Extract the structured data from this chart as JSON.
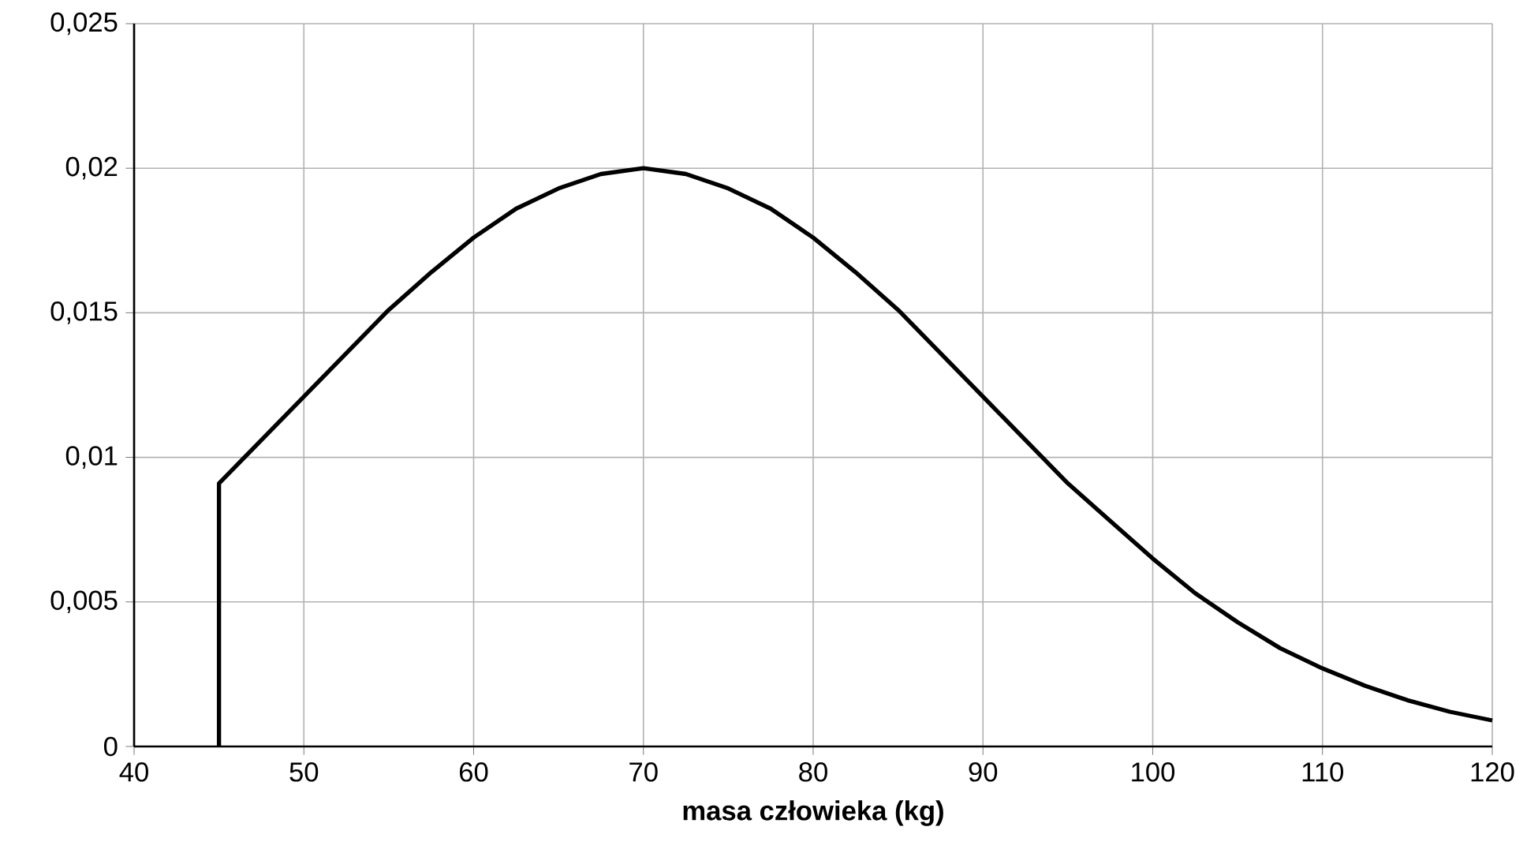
{
  "chart_data": {
    "type": "line",
    "xlabel": "**masa człowieka (kg)**",
    "x": [
      45,
      45,
      47.5,
      50,
      52.5,
      55,
      57.5,
      60,
      62.5,
      65,
      67.5,
      70,
      72.5,
      75,
      77.5,
      80,
      82.5,
      85,
      87.5,
      90,
      92.5,
      95,
      97.5,
      100,
      102.5,
      105,
      107.5,
      110,
      112.5,
      115,
      117.5,
      120
    ],
    "values": [
      0,
      0.0091,
      0.0106,
      0.0121,
      0.0136,
      0.0151,
      0.0164,
      0.0176,
      0.0186,
      0.0193,
      0.0198,
      0.02,
      0.0198,
      0.0193,
      0.0186,
      0.0176,
      0.0164,
      0.0151,
      0.0136,
      0.0121,
      0.0106,
      0.0091,
      0.0078,
      0.0065,
      0.0053,
      0.0043,
      0.0034,
      0.0027,
      0.0021,
      0.0016,
      0.0012,
      0.0009
    ],
    "color": "#000000",
    "xlim": [
      40,
      120
    ],
    "ylim": [
      0,
      0.025
    ],
    "xticks": [
      40,
      50,
      60,
      70,
      80,
      90,
      100,
      110,
      120
    ],
    "yticks": [
      {
        "value": 0,
        "label": "0"
      },
      {
        "value": 0.005,
        "label": "0,005"
      },
      {
        "value": 0.01,
        "label": "0,01"
      },
      {
        "value": 0.015,
        "label": "0,015"
      },
      {
        "value": 0.02,
        "label": "0,02"
      },
      {
        "value": 0.025,
        "label": "0,025"
      }
    ],
    "grid": true
  }
}
